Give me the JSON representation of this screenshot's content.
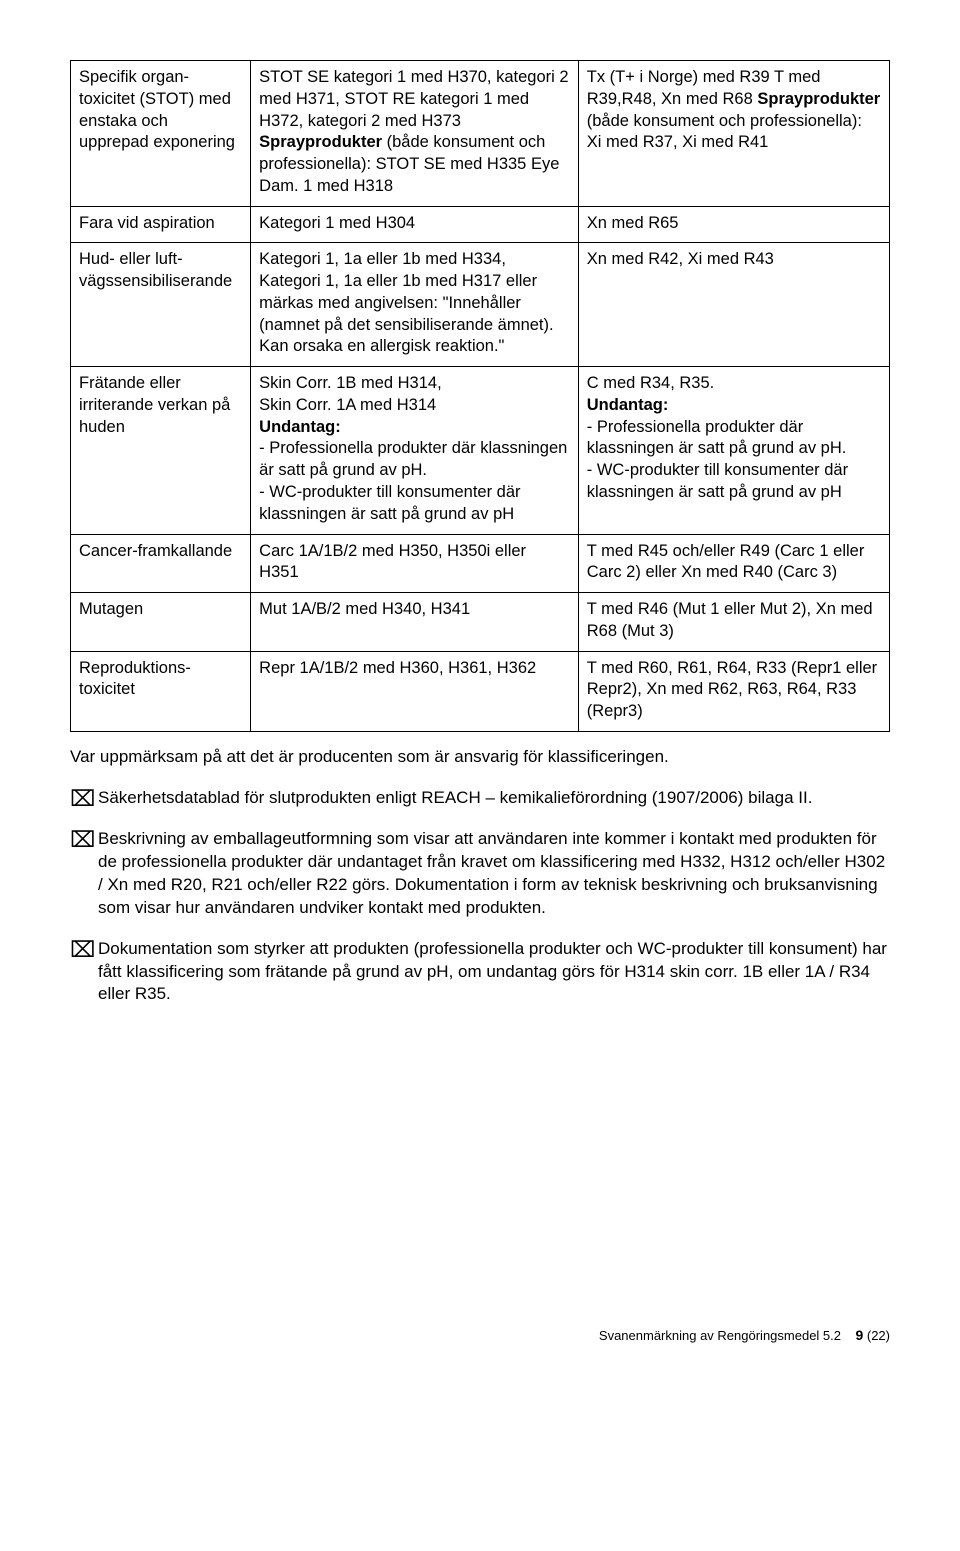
{
  "table": {
    "rows": [
      {
        "c1": "Specifik organ-toxicitet (STOT) med enstaka och upprepad exponering",
        "c2_pre": "STOT SE kategori 1 med H370, kategori 2 med H371, STOT RE kategori 1 med H372, kategori 2 med H373 ",
        "c2_bold": "Sprayprodukter",
        "c2_post": " (både konsument och professionella): STOT SE med H335 Eye Dam. 1 med H318",
        "c3_pre": "Tx (T+ i Norge) med R39 T med R39,R48, Xn med R68 ",
        "c3_bold": "Sprayprodukter",
        "c3_post": " (både konsument och professionella): Xi med R37, Xi med R41"
      },
      {
        "c1": "Fara vid aspiration",
        "c2": "Kategori 1 med H304",
        "c3": "Xn med R65"
      },
      {
        "c1": "Hud- eller luft-vägssensibiliserande",
        "c2": "Kategori 1, 1a eller 1b med H334, Kategori 1, 1a eller 1b med H317 eller märkas med angivelsen: \"Innehåller (namnet på det sensibiliserande ämnet). Kan orsaka en allergisk reaktion.\"",
        "c3": "Xn med R42, Xi med R43"
      },
      {
        "c1": "Frätande eller irriterande verkan på huden",
        "c2_l1": "Skin Corr. 1B med H314,",
        "c2_l2": "Skin Corr. 1A med H314",
        "c2_bold": "Undantag:",
        "c2_l3": "- Professionella produkter där klassningen är satt på grund av pH.",
        "c2_l4": "- WC-produkter till konsumenter där klassningen är satt på grund av pH",
        "c3_l1": "C med R34, R35.",
        "c3_bold": "Undantag:",
        "c3_l2": "- Professionella produkter där klassningen är satt på grund av pH.",
        "c3_l3": "- WC-produkter till konsumenter där klassningen är satt på grund av pH"
      },
      {
        "c1": "Cancer-framkallande",
        "c2": "Carc 1A/1B/2 med H350, H350i eller H351",
        "c3": "T med R45 och/eller R49 (Carc 1 eller Carc 2) eller Xn med R40 (Carc 3)"
      },
      {
        "c1": "Mutagen",
        "c2": "Mut 1A/B/2 med H340, H341",
        "c3": "T med R46 (Mut 1 eller Mut 2), Xn med R68 (Mut 3)"
      },
      {
        "c1": "Reproduktions-toxicitet",
        "c2": "Repr 1A/1B/2 med H360, H361, H362",
        "c3": "T med R60, R61, R64, R33 (Repr1 eller Repr2), Xn med R62, R63, R64, R33 (Repr3)"
      }
    ]
  },
  "after_table": "Var uppmärksam på att det är producenten som är ansvarig för klassificeringen.",
  "checks": [
    "Säkerhetsdatablad för slutprodukten enligt REACH – kemikalieförordning (1907/2006) bilaga II.",
    "Beskrivning av emballageutformning som visar att användaren inte kommer i kontakt med produkten för de professionella produkter där undantaget från kravet om klassificering med H332, H312 och/eller H302 / Xn med R20, R21 och/eller R22 görs. Dokumentation i form av teknisk beskrivning och bruksanvisning som visar hur användaren undviker kontakt med produkten.",
    "Dokumentation som styrker att produkten (professionella produkter och WC-produkter till konsument) har fått klassificering som frätande på grund av pH, om undantag görs för H314 skin corr. 1B eller 1A / R34 eller R35."
  ],
  "footer": {
    "title": "Svanenmärkning av Rengöringsmedel 5.2",
    "page": "9",
    "total": "(22)"
  },
  "glyph": {
    "checkbox": "⌧"
  }
}
